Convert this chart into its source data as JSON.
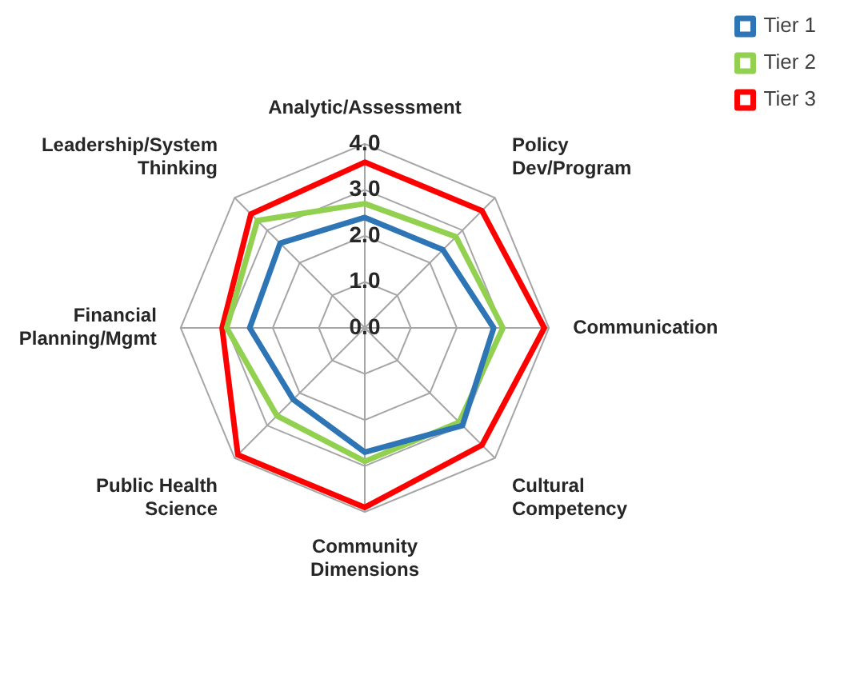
{
  "chart_data": {
    "type": "radar",
    "categories": [
      "Analytic/Assessment",
      "Policy Dev/Program",
      "Communication",
      "Cultural Competency",
      "Community Dimensions",
      "Public Health Science",
      "Financial Planning/Mgmt",
      "Leadership/System Thinking"
    ],
    "series": [
      {
        "name": "Tier 1",
        "color": "#2e75b6",
        "values": [
          2.4,
          2.4,
          2.8,
          3.0,
          2.7,
          2.2,
          2.5,
          2.6
        ]
      },
      {
        "name": "Tier 2",
        "color": "#92d050",
        "values": [
          2.7,
          2.8,
          3.0,
          2.9,
          2.9,
          2.7,
          3.0,
          3.3
        ]
      },
      {
        "name": "Tier 3",
        "color": "#ff0000",
        "values": [
          3.6,
          3.6,
          3.9,
          3.6,
          3.9,
          3.9,
          3.1,
          3.5
        ]
      }
    ],
    "ylim": [
      0,
      4
    ],
    "yticks": [
      {
        "value": 0,
        "label": "0.0"
      },
      {
        "value": 1,
        "label": "1.0"
      },
      {
        "value": 2,
        "label": "2.0"
      },
      {
        "value": 3,
        "label": "3.0"
      },
      {
        "value": 4,
        "label": "4.0"
      }
    ],
    "grid": true,
    "legend": "top right",
    "marker": "none",
    "line_style": "solid"
  }
}
